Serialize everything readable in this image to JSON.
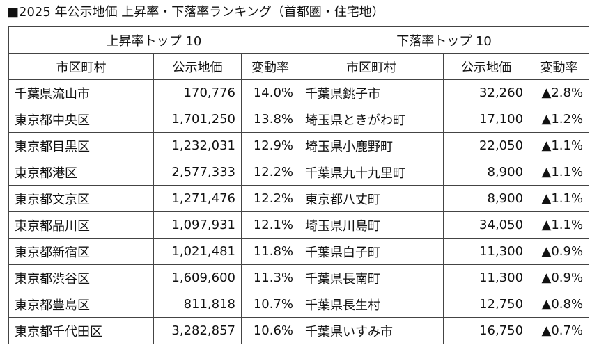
{
  "title": "■2025 年公示地価 上昇率・下落率ランキング（首都圏・住宅地）",
  "rise": {
    "heading": "上昇率トップ 10",
    "columns": [
      "市区町村",
      "公示地価",
      "変動率"
    ],
    "rows": [
      {
        "city": "千葉県流山市",
        "price": "170,776",
        "rate": "14.0%"
      },
      {
        "city": "東京都中央区",
        "price": "1,701,250",
        "rate": "13.8%"
      },
      {
        "city": "東京都目黒区",
        "price": "1,232,031",
        "rate": "12.9%"
      },
      {
        "city": "東京都港区",
        "price": "2,577,333",
        "rate": "12.2%"
      },
      {
        "city": "東京都文京区",
        "price": "1,271,476",
        "rate": "12.2%"
      },
      {
        "city": "東京都品川区",
        "price": "1,097,931",
        "rate": "12.1%"
      },
      {
        "city": "東京都新宿区",
        "price": "1,021,481",
        "rate": "11.8%"
      },
      {
        "city": "東京都渋谷区",
        "price": "1,609,600",
        "rate": "11.3%"
      },
      {
        "city": "東京都豊島区",
        "price": "811,818",
        "rate": "10.7%"
      },
      {
        "city": "東京都千代田区",
        "price": "3,282,857",
        "rate": "10.6%"
      }
    ]
  },
  "fall": {
    "heading": "下落率トップ 10",
    "columns": [
      "市区町村",
      "公示地価",
      "変動率"
    ],
    "rows": [
      {
        "city": "千葉県銚子市",
        "price": "32,260",
        "rate": "▲2.8%"
      },
      {
        "city": "埼玉県ときがわ町",
        "price": "17,100",
        "rate": "▲1.2%"
      },
      {
        "city": "埼玉県小鹿野町",
        "price": "22,050",
        "rate": "▲1.1%"
      },
      {
        "city": "千葉県九十九里町",
        "price": "8,900",
        "rate": "▲1.1%"
      },
      {
        "city": "東京都八丈町",
        "price": "8,900",
        "rate": "▲1.1%"
      },
      {
        "city": "埼玉県川島町",
        "price": "34,050",
        "rate": "▲1.1%"
      },
      {
        "city": "千葉県白子町",
        "price": "11,300",
        "rate": "▲0.9%"
      },
      {
        "city": "千葉県長南町",
        "price": "11,300",
        "rate": "▲0.9%"
      },
      {
        "city": "千葉県長生村",
        "price": "12,750",
        "rate": "▲0.8%"
      },
      {
        "city": "千葉県いすみ市",
        "price": "16,750",
        "rate": "▲0.7%"
      }
    ]
  }
}
